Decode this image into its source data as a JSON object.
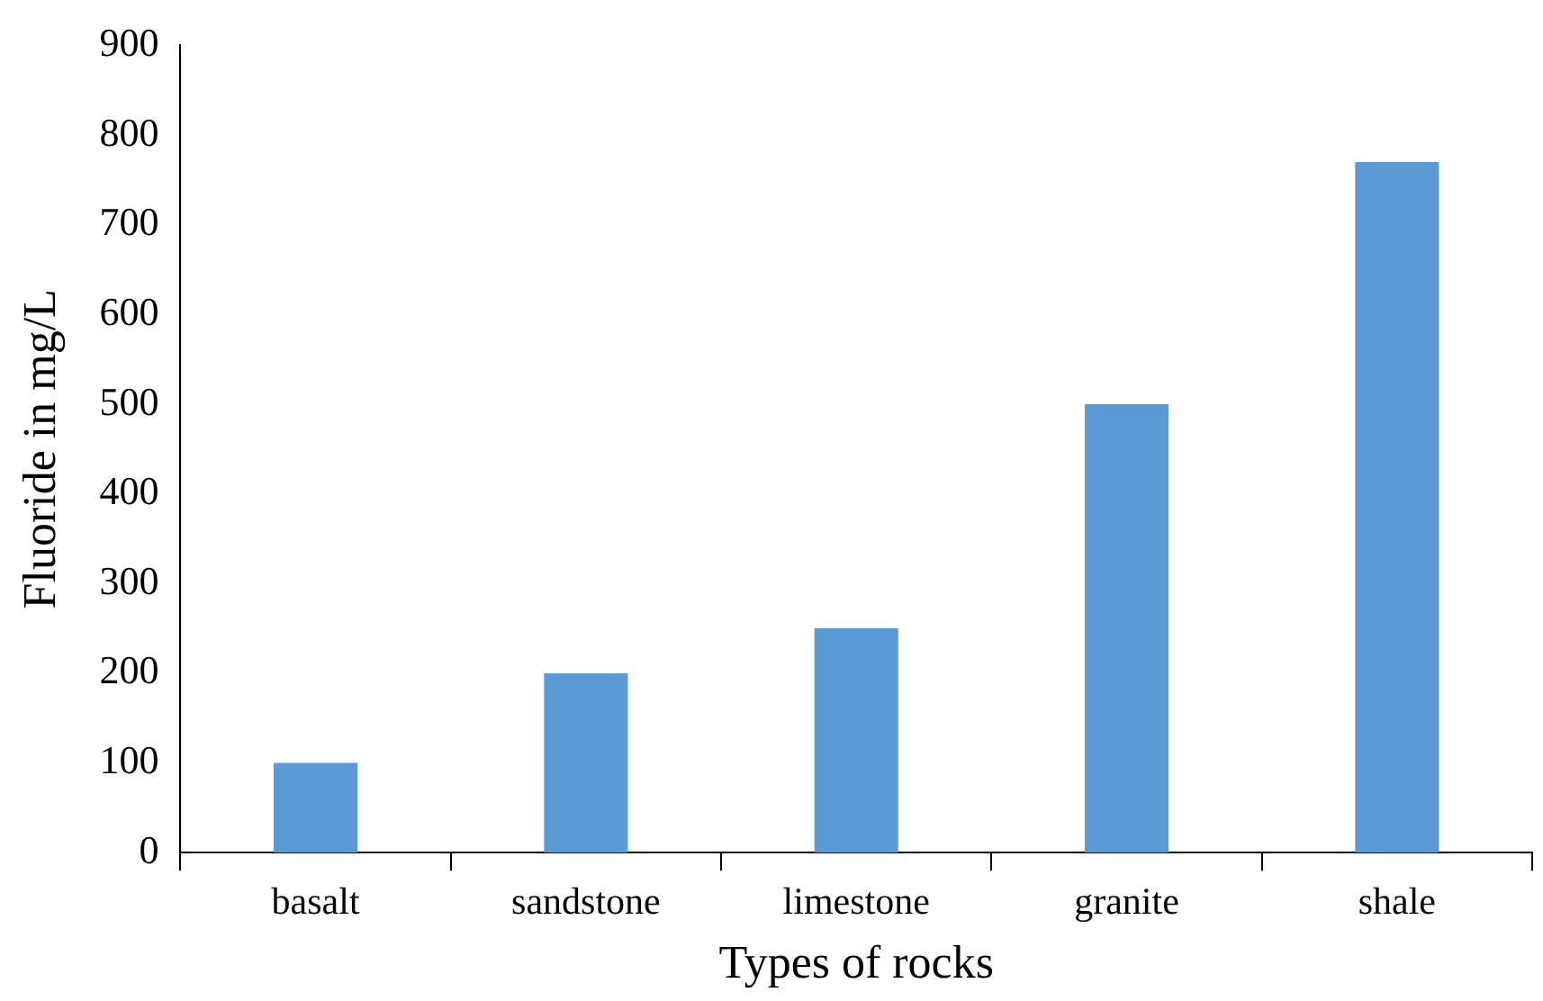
{
  "chart_data": {
    "type": "bar",
    "xlabel": "Types of rocks",
    "ylabel": "Fluoride in mg/L",
    "categories": [
      "basalt",
      "sandstone",
      "limestone",
      "granite",
      "shale"
    ],
    "values": [
      100,
      200,
      250,
      500,
      770
    ],
    "color": "#5b9bd5",
    "ylim": [
      0,
      900
    ],
    "yticks": [
      0,
      100,
      200,
      300,
      400,
      500,
      600,
      700,
      800,
      900
    ],
    "grid": false,
    "legend": false
  }
}
